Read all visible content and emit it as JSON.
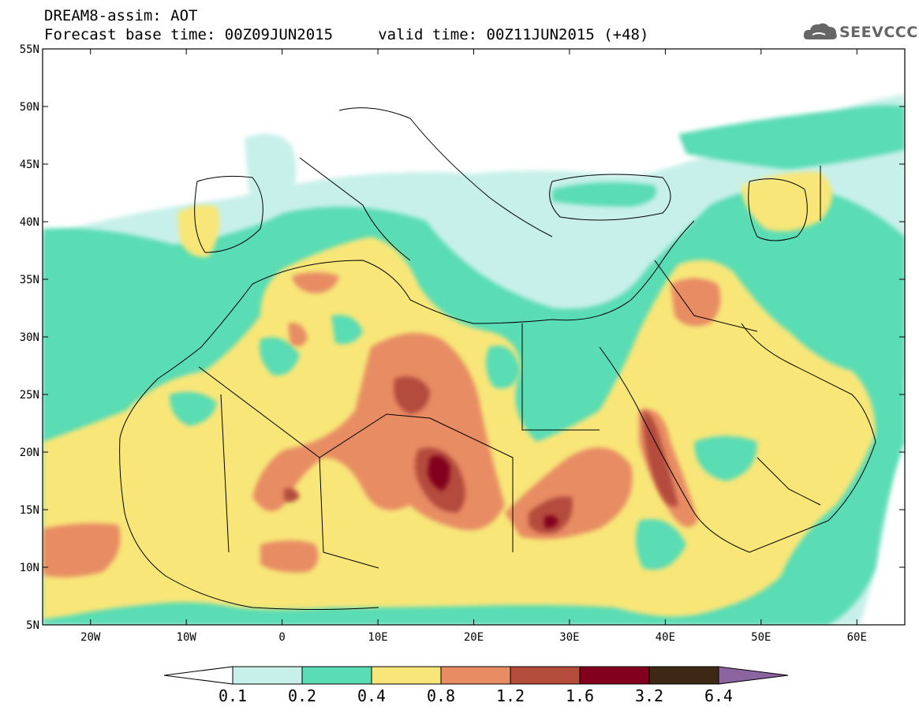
{
  "header": {
    "title": "DREAM8-assim: AOT",
    "subtitle": "Forecast base time: 00Z09JUN2015     valid time: 00Z11JUN2015 (+48)"
  },
  "logo": {
    "text": "SEEVCCC",
    "icon": "cloud-icon"
  },
  "map": {
    "region": "North Africa, Middle East, Mediterranean",
    "lon_range": [
      -25,
      65
    ],
    "lat_range": [
      5,
      55
    ],
    "lat_ticks": [
      {
        "value": 55,
        "label": "55N"
      },
      {
        "value": 50,
        "label": "50N"
      },
      {
        "value": 45,
        "label": "45N"
      },
      {
        "value": 40,
        "label": "40N"
      },
      {
        "value": 35,
        "label": "35N"
      },
      {
        "value": 30,
        "label": "30N"
      },
      {
        "value": 25,
        "label": "25N"
      },
      {
        "value": 20,
        "label": "20N"
      },
      {
        "value": 15,
        "label": "15N"
      },
      {
        "value": 10,
        "label": "10N"
      },
      {
        "value": 5,
        "label": "5N"
      }
    ],
    "lon_ticks": [
      {
        "value": -20,
        "label": "20W"
      },
      {
        "value": -10,
        "label": "10W"
      },
      {
        "value": 0,
        "label": "0"
      },
      {
        "value": 10,
        "label": "10E"
      },
      {
        "value": 20,
        "label": "20E"
      },
      {
        "value": 30,
        "label": "30E"
      },
      {
        "value": 40,
        "label": "40E"
      },
      {
        "value": 50,
        "label": "50E"
      },
      {
        "value": 60,
        "label": "60E"
      }
    ]
  },
  "colorbar": {
    "labels": [
      "0.1",
      "0.2",
      "0.4",
      "0.8",
      "1.2",
      "1.6",
      "3.2",
      "6.4"
    ],
    "colors": [
      "#c8f0ea",
      "#5adcb4",
      "#f8e678",
      "#e88c64",
      "#b44c3c",
      "#82001e",
      "#3c2814",
      "#8c64a0"
    ],
    "under_color": "#ffffff"
  }
}
